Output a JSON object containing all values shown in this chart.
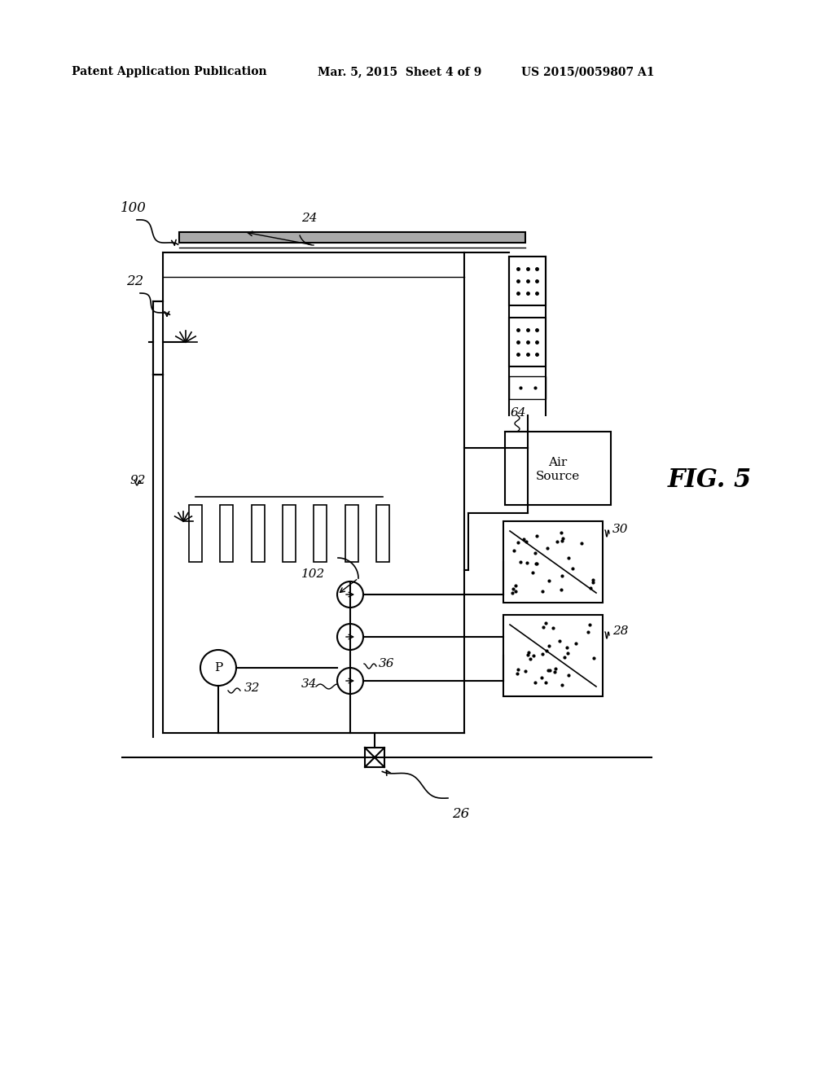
{
  "bg_color": "#ffffff",
  "line_color": "#000000",
  "header_left": "Patent Application Publication",
  "header_mid": "Mar. 5, 2015  Sheet 4 of 9",
  "header_right": "US 2015/0059807 A1",
  "fig_label": "FIG. 5",
  "label_100": "100",
  "label_22": "22",
  "label_24": "24",
  "label_64": "64",
  "label_92": "92",
  "label_102": "102",
  "label_32": "32",
  "label_34": "34",
  "label_36": "36",
  "label_30": "30",
  "label_28": "28",
  "label_26": "26"
}
